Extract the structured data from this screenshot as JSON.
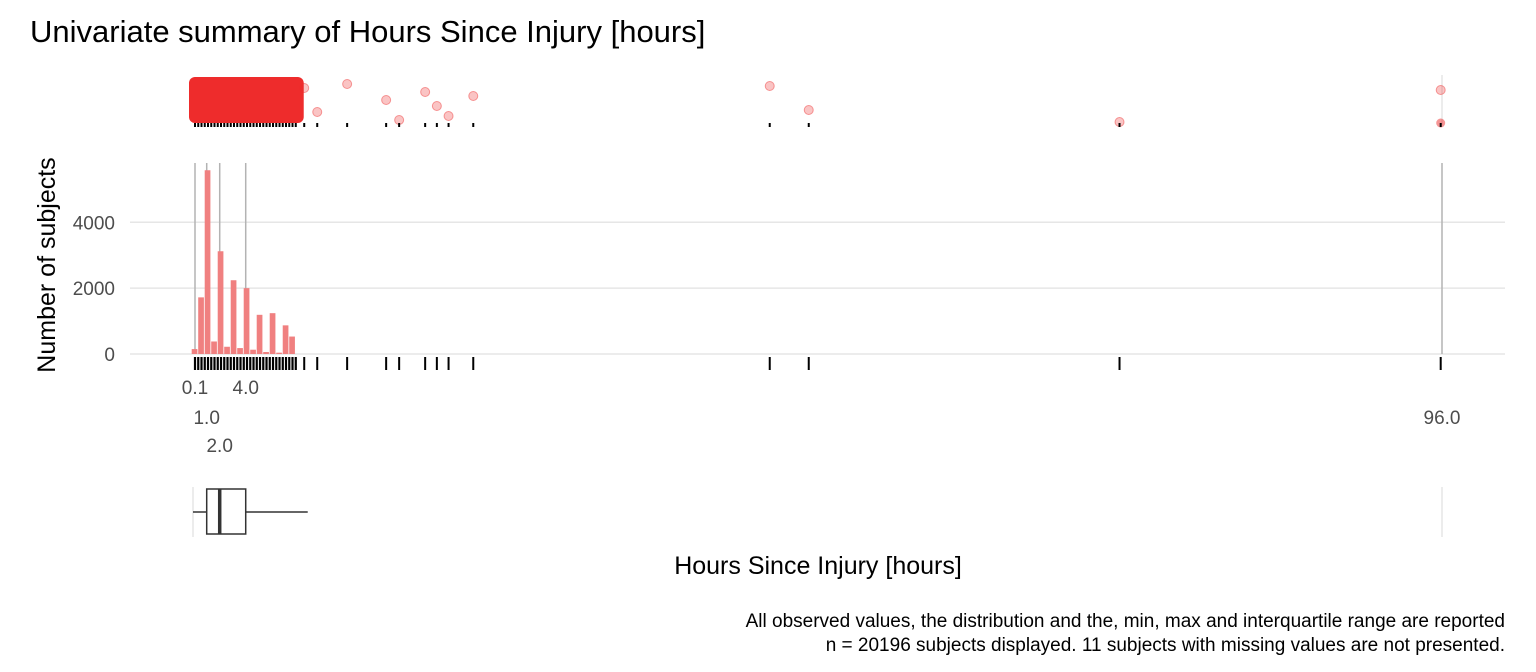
{
  "colors": {
    "bar": "#f08080",
    "point": "#ee2c2c",
    "grid": "#e6e6e6",
    "marker_line": "#b3b3b3",
    "rug": "#000000",
    "box": "#333333"
  },
  "chart_data": {
    "type": "bar",
    "title": "Univariate summary of Hours Since Injury [hours]",
    "xlabel": "Hours Since Injury [hours]",
    "ylabel": "Number of subjects",
    "xlim": [
      0.1,
      96
    ],
    "ylim": [
      0,
      5800
    ],
    "y_ticks": [
      0,
      2000,
      4000
    ],
    "grid": true,
    "x_tick_labels": [
      "0.1",
      "4.0",
      "1.0",
      "96.0",
      "2.0"
    ],
    "summary": {
      "min": 0.1,
      "q1": 1.0,
      "median": 2.0,
      "q3": 4.0,
      "max": 96.0,
      "whisker_high": 8.0
    },
    "histogram": {
      "bins": [
        0.0,
        0.5,
        1.0,
        1.5,
        2.0,
        2.5,
        3.0,
        3.5,
        4.0,
        4.5,
        5.0,
        5.5,
        6.0,
        6.5,
        7.0,
        7.5
      ],
      "counts": [
        150,
        1720,
        5580,
        380,
        3120,
        220,
        2240,
        180,
        2000,
        130,
        1190,
        60,
        1240,
        40,
        870,
        530
      ]
    },
    "rug_values": [
      8.5,
      9.5,
      11.8,
      14.8,
      15.8,
      17.8,
      18.7,
      19.6,
      21.5,
      44.3,
      47.3,
      71.2,
      95.9
    ],
    "outlier_points": [
      8.5,
      9.5,
      11.8,
      14.8,
      15.8,
      17.8,
      18.7,
      19.6,
      21.5,
      44.3,
      47.3,
      71.2,
      95.9
    ],
    "caption": [
      "All observed values, the distribution and the, min, max and interquartile range are reported",
      "n = 20196 subjects displayed. 11 subjects with missing values are not presented."
    ]
  }
}
